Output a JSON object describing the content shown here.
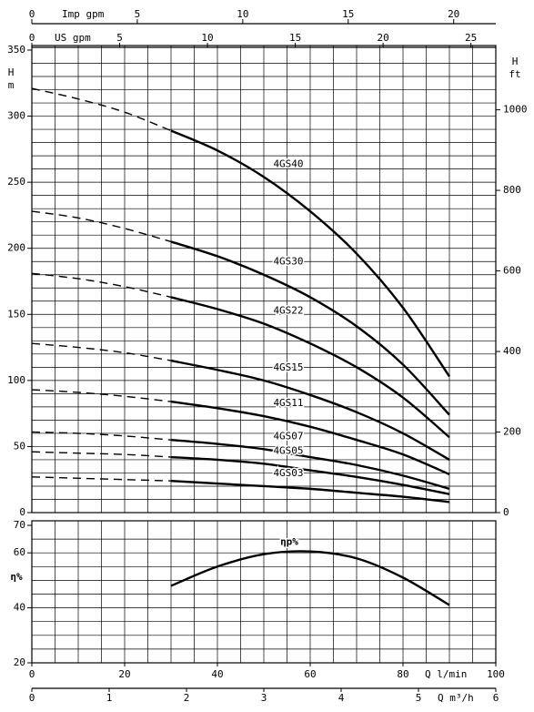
{
  "chart_data": [
    {
      "type": "line",
      "x_axes_top": [
        {
          "label": "Imp gpm",
          "lim": [
            0,
            21.997
          ],
          "ticks": [
            0,
            5,
            10,
            15,
            20
          ]
        },
        {
          "label": "US gpm",
          "lim": [
            0,
            26.417
          ],
          "ticks": [
            0,
            5,
            10,
            15,
            20,
            25
          ]
        }
      ],
      "y_label": [
        "H",
        "m"
      ],
      "y2_label": [
        "H",
        "ft"
      ],
      "x": [
        0,
        10,
        20,
        30,
        40,
        50,
        60,
        70,
        80,
        90
      ],
      "xlim": [
        0,
        100
      ],
      "xgrid_step": 5,
      "ylim": [
        0,
        350
      ],
      "yticks": [
        0,
        50,
        100,
        150,
        200,
        250,
        300,
        350
      ],
      "ygrid_step": 10,
      "y2lim": [
        0,
        1148.3
      ],
      "y2ticks": [
        0,
        200,
        400,
        600,
        800,
        1000
      ],
      "dashed_below_x": 30,
      "series": [
        {
          "name": "4GS40",
          "color": "#000000",
          "values": [
            321,
            313,
            303,
            289,
            274,
            254,
            228,
            196,
            155,
            103
          ]
        },
        {
          "name": "4GS30",
          "color": "#000000",
          "values": [
            228,
            223,
            215,
            205,
            194,
            180,
            163,
            141,
            112,
            74
          ]
        },
        {
          "name": "4GS22",
          "color": "#000000",
          "values": [
            181,
            177,
            171,
            163,
            154,
            143,
            128,
            110,
            87,
            57
          ]
        },
        {
          "name": "4GS15",
          "color": "#000000",
          "values": [
            128,
            125,
            121,
            115,
            108,
            100,
            89,
            76,
            60,
            40
          ]
        },
        {
          "name": "4GS11",
          "color": "#000000",
          "values": [
            93,
            91,
            88,
            84,
            79,
            73,
            65,
            55,
            44,
            29
          ]
        },
        {
          "name": "4GS07",
          "color": "#000000",
          "values": [
            61,
            60,
            58,
            55,
            52,
            48,
            42,
            36,
            28,
            18
          ]
        },
        {
          "name": "4GS05",
          "color": "#000000",
          "values": [
            46,
            45,
            44,
            42,
            40,
            37,
            32,
            27,
            21,
            14
          ]
        },
        {
          "name": "4GS03",
          "color": "#000000",
          "values": [
            27,
            26,
            25,
            24,
            22,
            20,
            18,
            15,
            12,
            8
          ]
        }
      ]
    },
    {
      "type": "line",
      "y_label": "η%",
      "x": [
        0,
        10,
        20,
        30,
        40,
        50,
        60,
        70,
        80,
        90
      ],
      "xlim": [
        0,
        100
      ],
      "xticks": [
        0,
        20,
        40,
        60,
        80,
        100
      ],
      "x_label": "Q l/min",
      "xgrid_step": 5,
      "x_axes_bottom": [
        {
          "label": "Q m³/h",
          "lim": [
            0,
            6
          ],
          "ticks": [
            0,
            1,
            2,
            3,
            4,
            5,
            6
          ]
        }
      ],
      "ylim": [
        20,
        70
      ],
      "yticks": [
        20,
        40,
        60,
        70
      ],
      "ygrid_step": 5,
      "series": [
        {
          "name": "ηp%",
          "color": "#000000",
          "values": [
            null,
            null,
            null,
            48,
            55,
            59.5,
            60.5,
            58,
            51,
            41
          ]
        }
      ]
    }
  ]
}
